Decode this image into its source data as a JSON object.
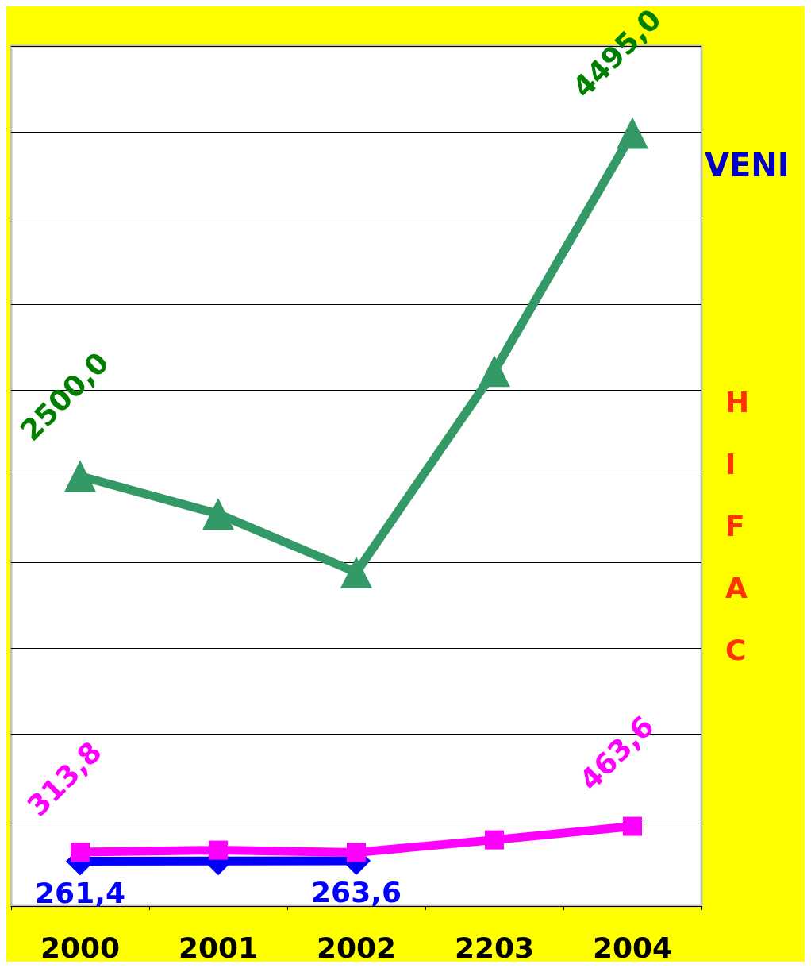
{
  "chart_data": {
    "type": "line",
    "categories": [
      "2000",
      "2001",
      "2002",
      "2203",
      "2004"
    ],
    "series": [
      {
        "color": "#339966",
        "marker": "triangle",
        "values": [
          2500.0,
          2280,
          1940,
          3110,
          4495.0
        ],
        "value_labels": [
          "2500,0",
          null,
          null,
          null,
          "4495,0"
        ]
      },
      {
        "color": "#ff00ff",
        "marker": "square",
        "values": [
          313.8,
          325,
          312,
          385,
          463.6
        ],
        "value_labels": [
          "313,8",
          null,
          null,
          null,
          "463,6"
        ]
      },
      {
        "color": "#0000ff",
        "marker": "diamond",
        "values": [
          261.4,
          262,
          263.6,
          null,
          null
        ],
        "value_labels": [
          "261,4",
          null,
          "263,6",
          null,
          null
        ]
      }
    ],
    "ylim": [
      0,
      5000
    ],
    "yticks": [
      {
        "value": 0,
        "label": null
      },
      {
        "value": 500,
        "label": null
      },
      {
        "value": 1000,
        "label": null
      },
      {
        "value": 1500,
        "label": null
      },
      {
        "value": 2000,
        "label": null
      },
      {
        "value": 2500,
        "label": null
      },
      {
        "value": 3000,
        "label": null
      },
      {
        "value": 3500,
        "label": null
      },
      {
        "value": 4000,
        "label": null
      },
      {
        "value": 4500,
        "label": null
      },
      {
        "value": 5000,
        "label": null
      }
    ],
    "tick_labels": "x",
    "grid": "y",
    "line_style": "solid",
    "annotations": [
      "VENI",
      "H",
      "I",
      "F",
      "A",
      "C"
    ]
  }
}
